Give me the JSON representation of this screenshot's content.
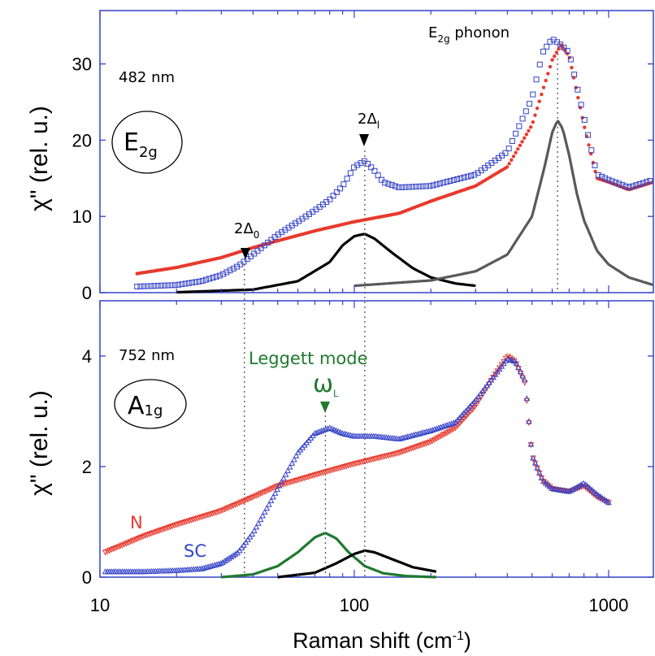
{
  "chart_data": [
    {
      "type": "scatter",
      "panel": "top",
      "wavelength": "482 nm",
      "symmetry": "E",
      "symmetry_sub": "2g",
      "ylabel": "χ\" (rel. u.)",
      "ylim": [
        0,
        37
      ],
      "yticks": [
        "0",
        "10",
        "20",
        "30"
      ],
      "xscale": "log",
      "xlim": [
        10,
        1500
      ],
      "phonon_label": "E",
      "phonon_label_sub": "2g",
      "phonon_label_suffix": " phonon",
      "gap_label_large": "2Δ",
      "gap_label_large_sub": "l",
      "gap_label_small": "2Δ",
      "gap_label_small_sub": "0",
      "series": [
        {
          "name": "N",
          "color": "#e8392c",
          "marker": "dot",
          "x": [
            14,
            20,
            30,
            40,
            50,
            70,
            100,
            150,
            200,
            300,
            400,
            500,
            600,
            650,
            700,
            800,
            900,
            1000,
            1200,
            1500
          ],
          "y": [
            2.5,
            3.3,
            4.6,
            5.9,
            6.8,
            8.1,
            9.3,
            10.4,
            12.0,
            14.0,
            16.5,
            22,
            30.5,
            32.5,
            31,
            22,
            15,
            14.5,
            13.5,
            14.5
          ]
        },
        {
          "name": "SC",
          "color": "#3342c8",
          "marker": "square",
          "x": [
            14,
            20,
            25,
            30,
            35,
            40,
            50,
            60,
            70,
            80,
            90,
            100,
            110,
            120,
            130,
            150,
            200,
            300,
            400,
            500,
            550,
            600,
            650,
            700,
            800,
            900,
            1000,
            1200,
            1500
          ],
          "y": [
            0.8,
            1.0,
            1.5,
            2.3,
            3.5,
            5.0,
            7.6,
            9.3,
            10.8,
            12.2,
            14.0,
            16.5,
            17.3,
            16.0,
            14.5,
            13.8,
            14.0,
            15.5,
            18.5,
            25.5,
            31.5,
            33.3,
            32.5,
            31.5,
            23.0,
            15.5,
            14.8,
            13.8,
            14.8
          ]
        },
        {
          "name": "",
          "color": "#000000",
          "marker": "line",
          "x": [
            20,
            40,
            60,
            80,
            90,
            100,
            110,
            120,
            140,
            170,
            200,
            250,
            300
          ],
          "y": [
            0.05,
            0.4,
            1.5,
            4.0,
            6.2,
            7.4,
            7.7,
            7.1,
            5.3,
            3.2,
            2.0,
            1.2,
            0.9
          ]
        },
        {
          "name": "",
          "color": "#595959",
          "marker": "line",
          "x": [
            100,
            200,
            300,
            400,
            500,
            560,
            600,
            630,
            660,
            700,
            750,
            800,
            900,
            1000,
            1200,
            1500
          ],
          "y": [
            0.9,
            1.6,
            2.8,
            5.0,
            10.0,
            16.5,
            21.0,
            22.6,
            21.5,
            18.0,
            13.0,
            9.5,
            5.5,
            3.7,
            2.0,
            1.0
          ]
        }
      ]
    },
    {
      "type": "scatter",
      "panel": "bottom",
      "wavelength": "752 nm",
      "symmetry": "A",
      "symmetry_sub": "1g",
      "ylabel": "χ\" (rel. u.)",
      "ylim": [
        0,
        5
      ],
      "yticks": [
        "0",
        "2",
        "4"
      ],
      "xscale": "log",
      "xlim": [
        10,
        1500
      ],
      "xlabel": "Raman shift (cm",
      "xlabel_sup": "-1",
      "xlabel_close": ")",
      "xticks": [
        "10",
        "100",
        "1000"
      ],
      "leggett_label": "Leggett mode",
      "omega_label": "ω",
      "omega_sub": "L",
      "series": [
        {
          "name": "N",
          "color": "#e8392c",
          "marker": "triangle-down",
          "x": [
            10.5,
            15,
            20,
            30,
            40,
            50,
            70,
            100,
            150,
            200,
            250,
            300,
            350,
            400,
            430,
            470,
            500,
            550,
            600,
            700,
            800,
            900,
            1000
          ],
          "y": [
            0.45,
            0.75,
            0.95,
            1.2,
            1.45,
            1.65,
            1.85,
            2.05,
            2.25,
            2.45,
            2.7,
            3.1,
            3.6,
            4.0,
            3.9,
            3.5,
            2.2,
            1.75,
            1.6,
            1.55,
            1.65,
            1.45,
            1.35
          ]
        },
        {
          "name": "SC",
          "color": "#3342c8",
          "marker": "triangle-up",
          "x": [
            10.5,
            15,
            20,
            25,
            30,
            35,
            40,
            50,
            60,
            70,
            80,
            90,
            100,
            120,
            150,
            200,
            250,
            300,
            350,
            400,
            430,
            470,
            500,
            550,
            600,
            700,
            800,
            900,
            1000
          ],
          "y": [
            0.1,
            0.1,
            0.12,
            0.15,
            0.25,
            0.45,
            0.8,
            1.6,
            2.25,
            2.6,
            2.7,
            2.6,
            2.55,
            2.55,
            2.5,
            2.65,
            2.8,
            3.2,
            3.6,
            3.95,
            3.9,
            3.55,
            2.2,
            1.75,
            1.6,
            1.55,
            1.7,
            1.5,
            1.35
          ]
        },
        {
          "name": "",
          "color": "#1f7a2e",
          "marker": "line",
          "x": [
            30,
            40,
            50,
            60,
            70,
            77,
            85,
            95,
            110,
            130,
            160,
            210
          ],
          "y": [
            0.0,
            0.05,
            0.2,
            0.45,
            0.72,
            0.8,
            0.7,
            0.45,
            0.2,
            0.07,
            0.02,
            0.0
          ]
        },
        {
          "name": "",
          "color": "#000000",
          "marker": "line",
          "x": [
            50,
            70,
            85,
            100,
            110,
            120,
            140,
            170,
            210
          ],
          "y": [
            0.0,
            0.08,
            0.25,
            0.42,
            0.48,
            0.45,
            0.33,
            0.18,
            0.1
          ]
        }
      ]
    }
  ]
}
